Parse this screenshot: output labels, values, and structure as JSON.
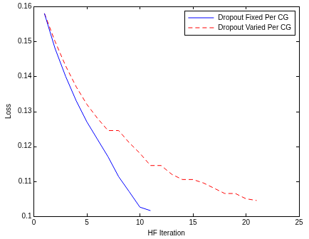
{
  "chart_data": {
    "type": "line",
    "x_label": "HF Iteration",
    "y_label": "Loss",
    "series": [
      {
        "name": "Dropout Fixed Per CG",
        "color": "#0000ff",
        "line_style": "solid",
        "x": [
          1,
          2,
          3,
          4,
          5,
          6,
          7,
          8,
          9,
          10,
          11
        ],
        "values": [
          0.158,
          0.148,
          0.14,
          0.133,
          0.127,
          0.122,
          0.117,
          0.1113,
          0.107,
          0.1026,
          0.1016
        ]
      },
      {
        "name": "Dropout Varied Per CG",
        "color": "#ff0000",
        "line_style": "dashed",
        "x": [
          1,
          2,
          3,
          4,
          5,
          6,
          7,
          8,
          9,
          10,
          11,
          12,
          13,
          14,
          15,
          16,
          17,
          18,
          19,
          20,
          21
        ],
        "values": [
          0.158,
          0.15,
          0.143,
          0.137,
          0.132,
          0.128,
          0.1245,
          0.1245,
          0.121,
          0.118,
          0.1145,
          0.1145,
          0.112,
          0.1105,
          0.1105,
          0.1095,
          0.108,
          0.1065,
          0.1065,
          0.105,
          0.1045
        ]
      }
    ],
    "xlim": [
      0,
      25
    ],
    "xticks": [
      0,
      5,
      10,
      15,
      20,
      25
    ],
    "ylim": [
      0.1,
      0.16
    ],
    "yticks": [
      0.1,
      0.11,
      0.12,
      0.13,
      0.14,
      0.15,
      0.16
    ],
    "grid": false,
    "legend": "upper right"
  }
}
